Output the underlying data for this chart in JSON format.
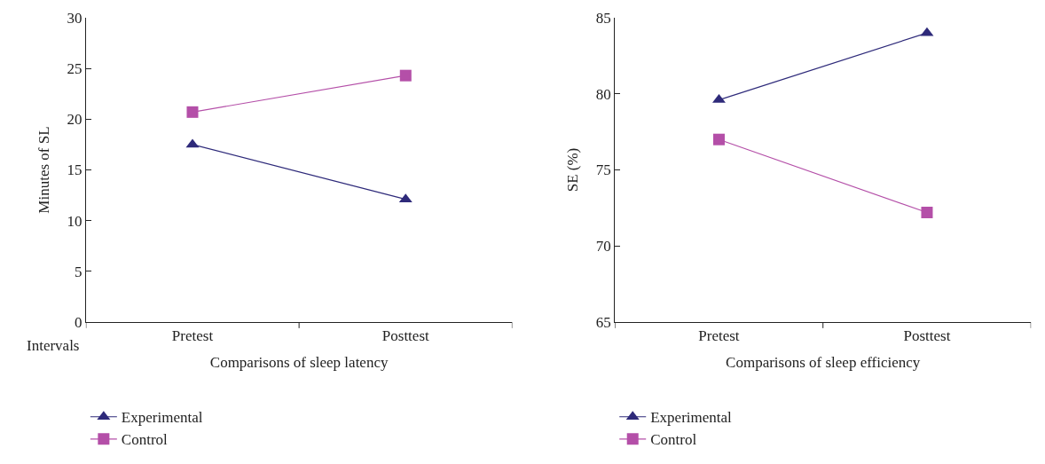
{
  "chart_data": [
    {
      "type": "line",
      "xlabel": "Comparisons of sleep latency",
      "ylabel": "Minutes of SL",
      "categories": [
        "Pretest",
        "Posttest"
      ],
      "ylim": [
        0,
        30
      ],
      "yticks": [
        0,
        5,
        10,
        15,
        20,
        25,
        30
      ],
      "legend": "bottom",
      "annotations": [
        "Intervals"
      ],
      "series": [
        {
          "name": "Experimental",
          "color": "#2e2a7a",
          "marker": "triangle",
          "values": [
            17.5,
            12.1
          ]
        },
        {
          "name": "Control",
          "color": "#b44fa8",
          "marker": "square",
          "values": [
            20.7,
            24.3
          ]
        }
      ]
    },
    {
      "type": "line",
      "xlabel": "Comparisons of sleep efficiency",
      "ylabel": "SE (%)",
      "categories": [
        "Pretest",
        "Posttest"
      ],
      "ylim": [
        65,
        85
      ],
      "yticks": [
        65,
        70,
        75,
        80,
        85
      ],
      "legend": "bottom",
      "series": [
        {
          "name": "Experimental",
          "color": "#2e2a7a",
          "marker": "triangle",
          "values": [
            79.6,
            84.0
          ]
        },
        {
          "name": "Control",
          "color": "#b44fa8",
          "marker": "square",
          "values": [
            77.0,
            72.2
          ]
        }
      ]
    }
  ]
}
